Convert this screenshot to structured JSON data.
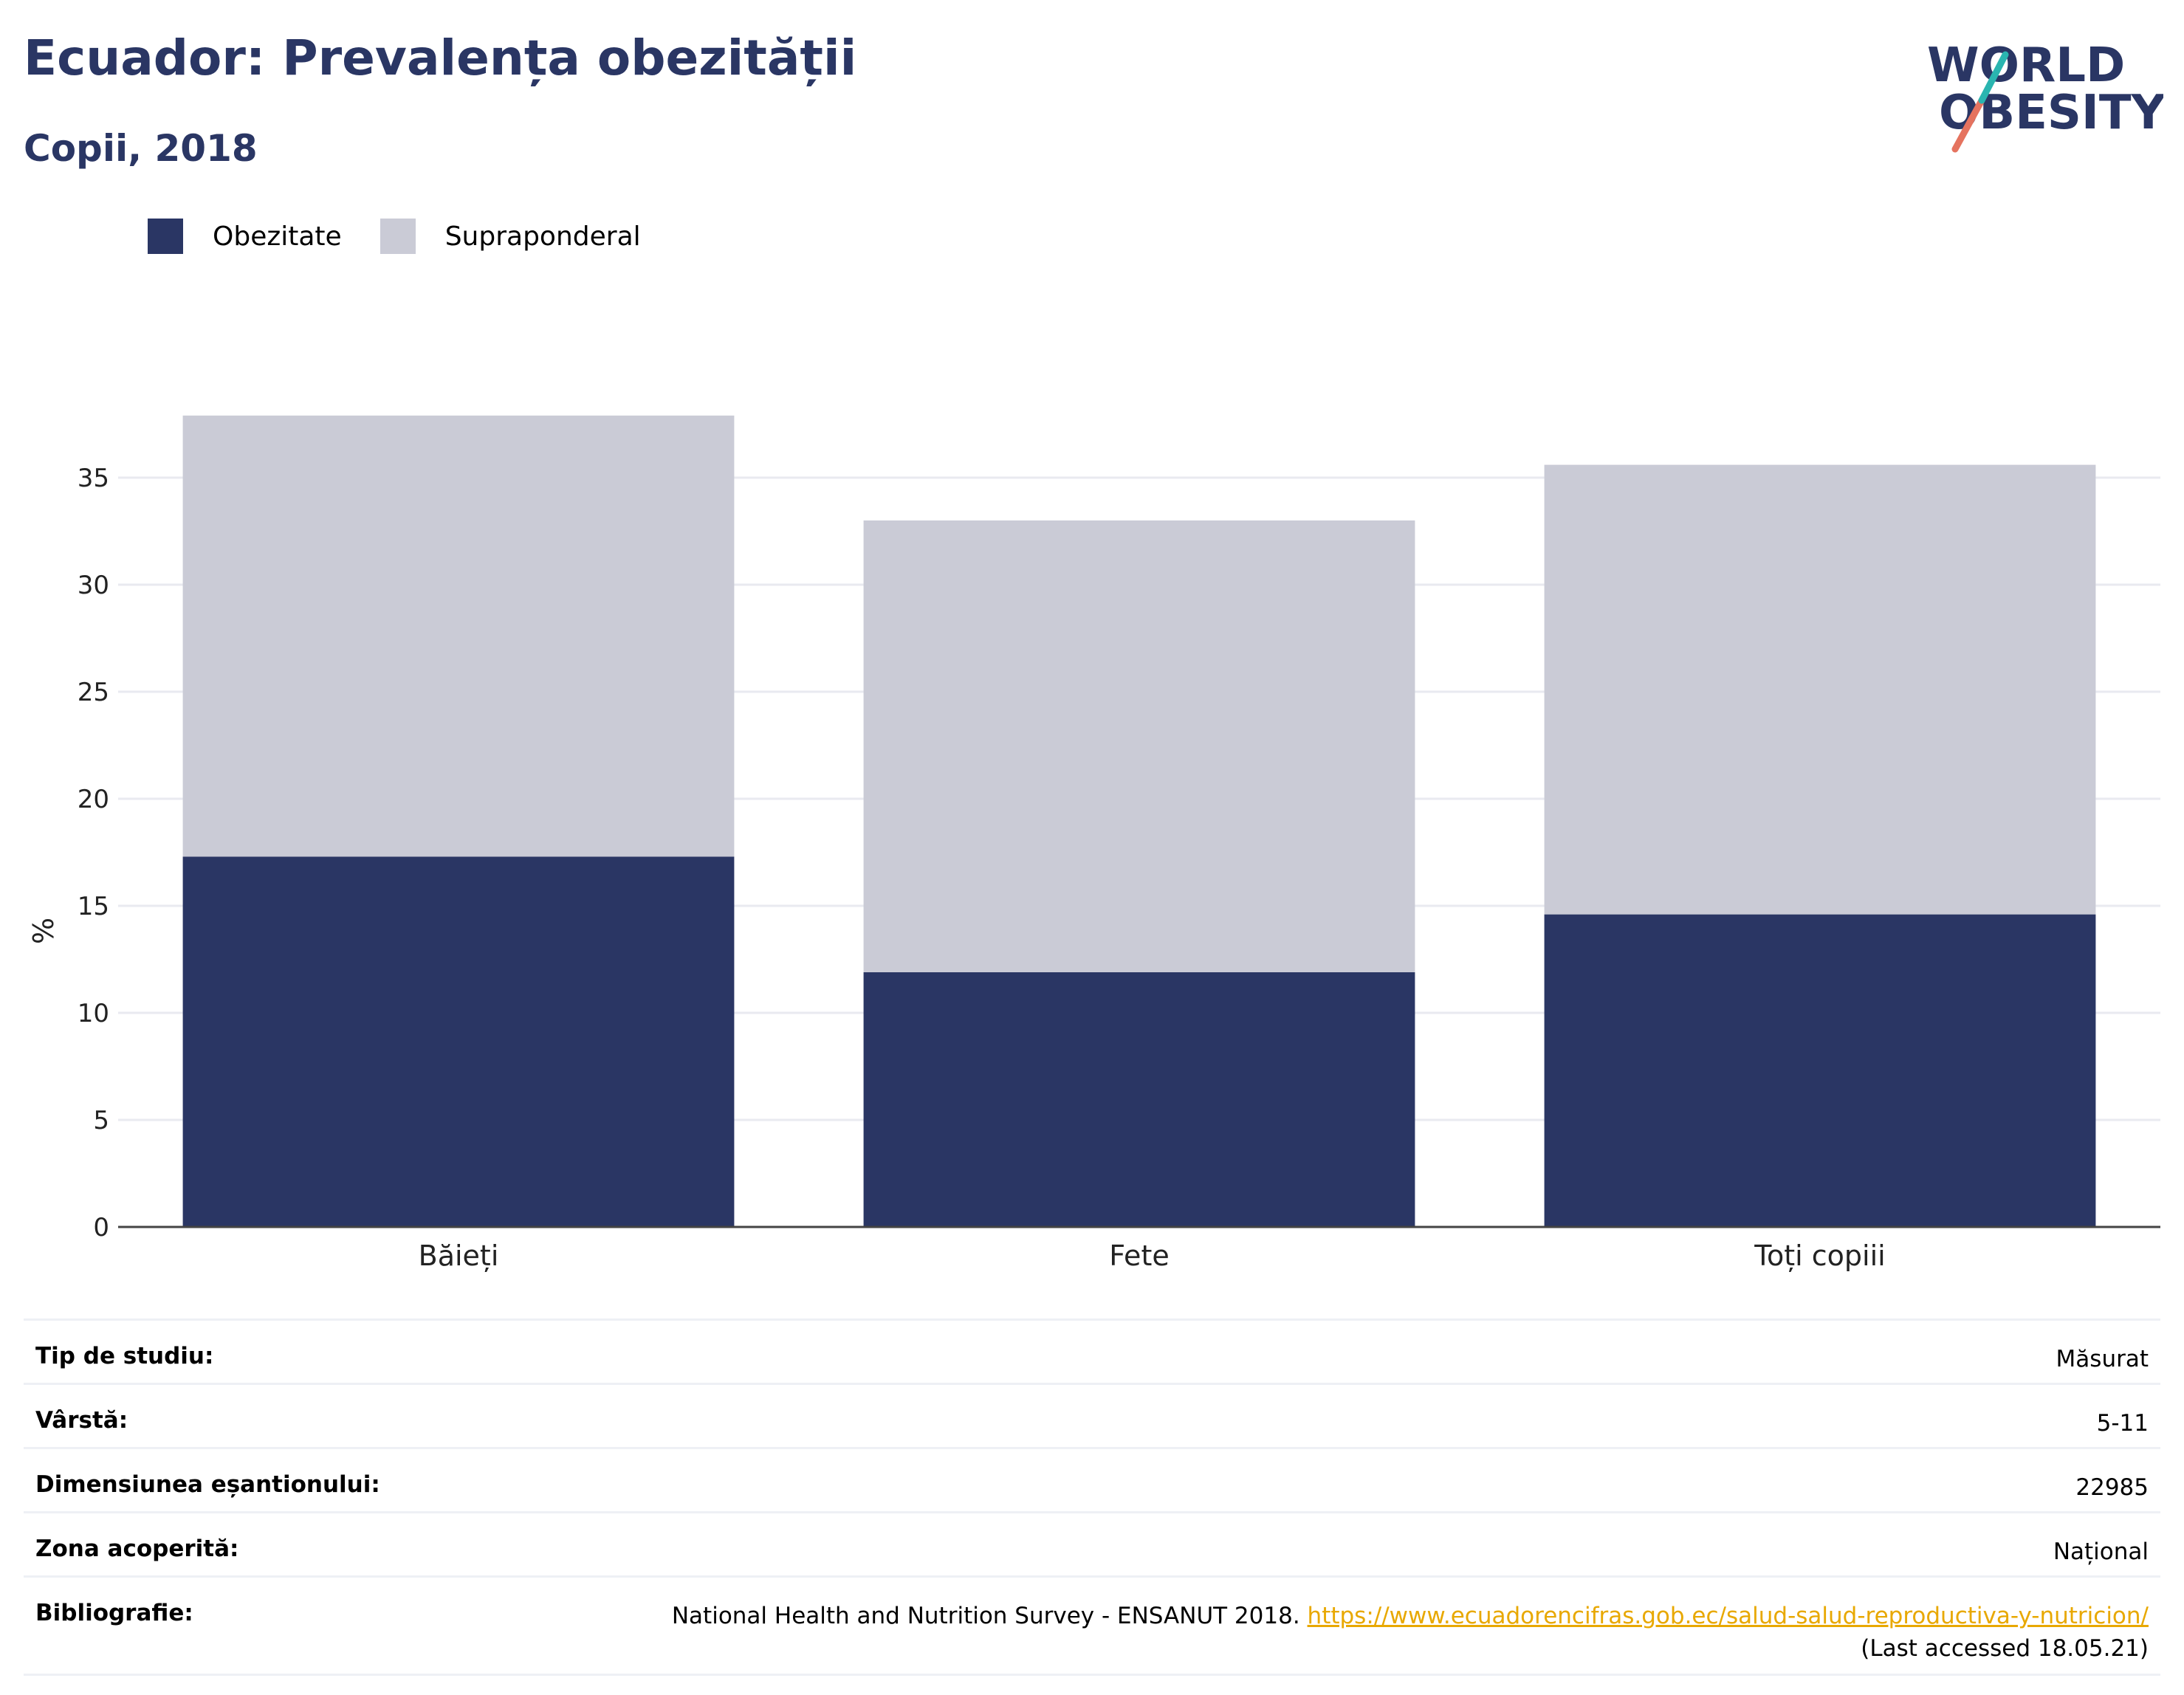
{
  "title": "Ecuador: Prevalența obezității",
  "subtitle": "Copii, 2018",
  "logo": {
    "line1": "WORLD",
    "line2": "OBESITY"
  },
  "colors": {
    "obezitate": "#2a3664",
    "supraponderal": "#cacbd6",
    "accent": "#2a3664",
    "link": "#e8a800"
  },
  "chart_data": {
    "type": "bar",
    "stacked": true,
    "categories": [
      "Băieți",
      "Fete",
      "Toți copiii"
    ],
    "series": [
      {
        "name": "Obezitate",
        "values": [
          17.3,
          11.9,
          14.6
        ]
      },
      {
        "name": "Supraponderal",
        "values": [
          20.6,
          21.1,
          21.0
        ]
      }
    ],
    "ylabel": "%",
    "ylim": [
      0,
      38
    ],
    "yticks": [
      0,
      5,
      10,
      15,
      20,
      25,
      30,
      35
    ],
    "grid": true,
    "legend": "top-left"
  },
  "info": {
    "study_type": {
      "label": "Tip de studiu:",
      "value": "Măsurat"
    },
    "age": {
      "label": "Vârstă:",
      "value": "5-11"
    },
    "sample": {
      "label": "Dimensiunea eșantionului:",
      "value": "22985"
    },
    "area": {
      "label": "Zona acoperită:",
      "value": "Național"
    },
    "bibliography": {
      "label": "Bibliografie:",
      "text": "National Health and Nutrition Survey - ENSANUT 2018.",
      "url": "https://www.ecuadorencifras.gob.ec/salud-salud-reproductiva-y-nutricion/",
      "accessed": "(Last accessed 18.05.21)"
    }
  }
}
